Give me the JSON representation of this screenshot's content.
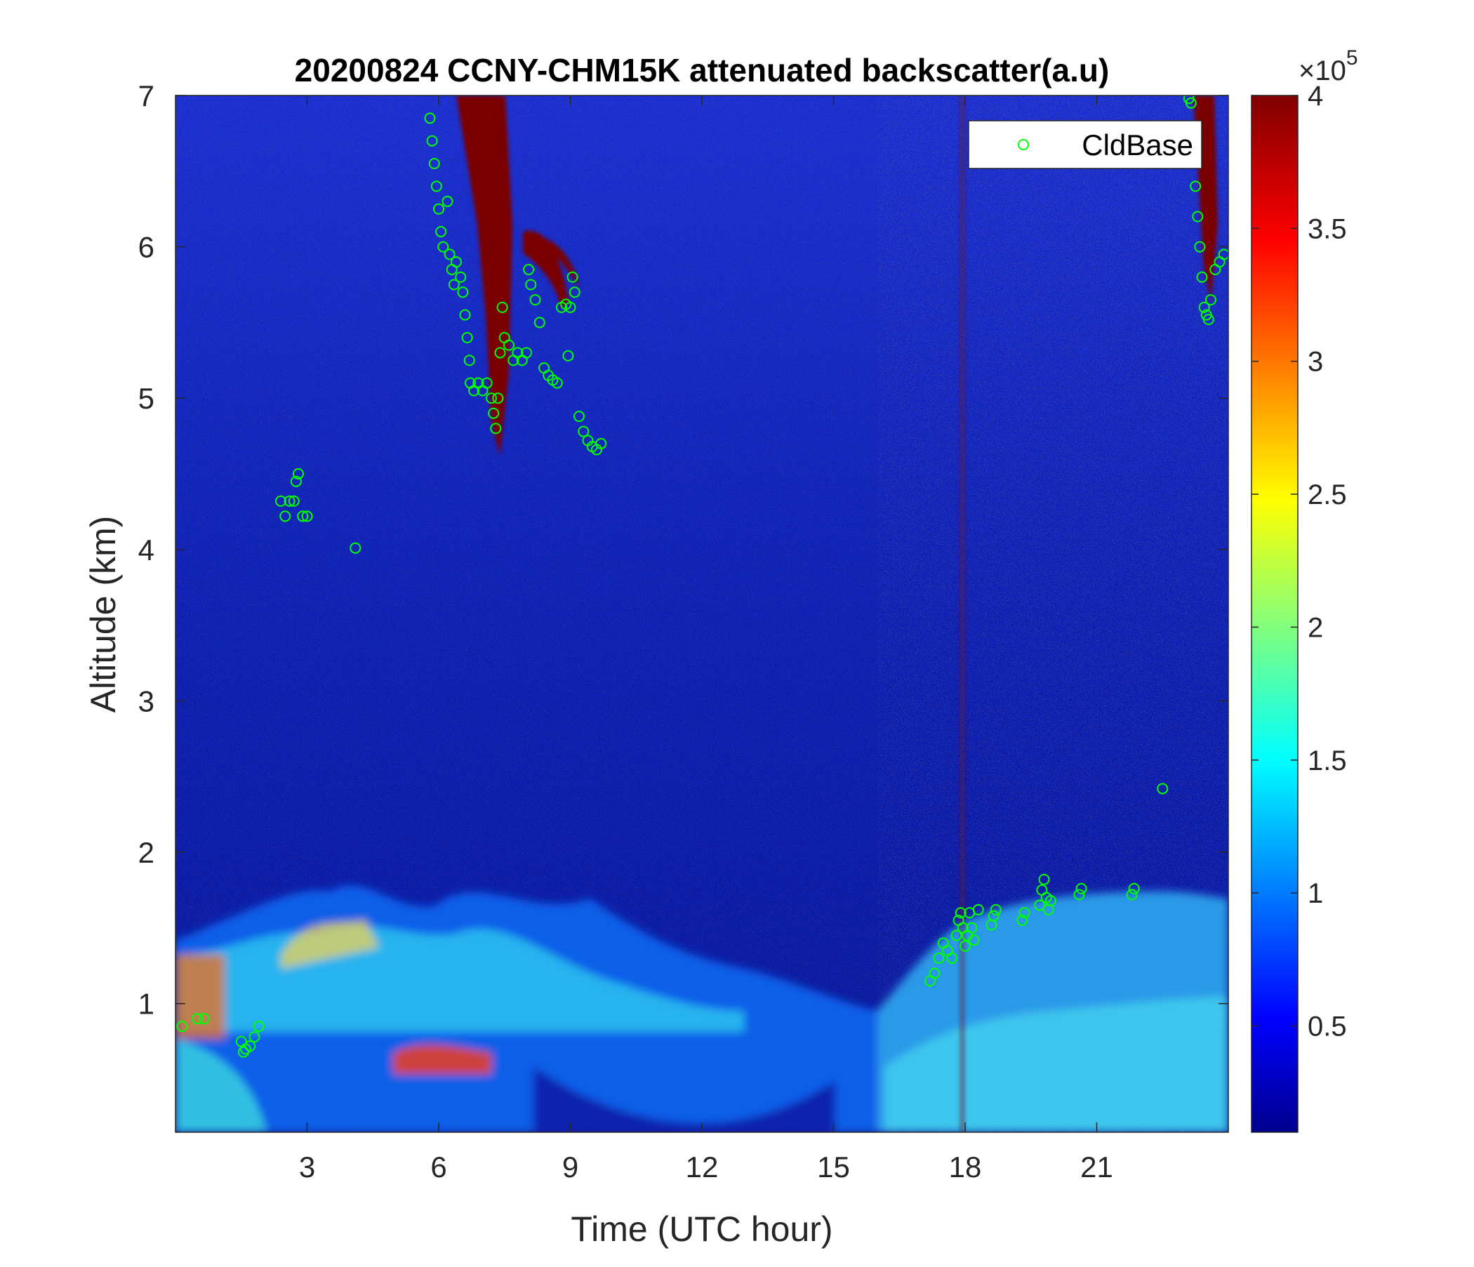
{
  "chart_data": {
    "type": "heatmap",
    "title": "20200824 CCNY-CHM15K attenuated backscatter(a.u)",
    "xlabel": "Time (UTC hour)",
    "ylabel": "Altitude (km)",
    "xlim": [
      0,
      24
    ],
    "ylim": [
      0.15,
      7
    ],
    "xticks": [
      3,
      6,
      9,
      12,
      15,
      18,
      21
    ],
    "yticks": [
      1,
      2,
      3,
      4,
      5,
      6,
      7
    ],
    "colorbar": {
      "colormap": "jet",
      "clim": [
        0.1,
        4
      ],
      "ticks": [
        0.5,
        1,
        1.5,
        2,
        2.5,
        3,
        3.5,
        4
      ],
      "multiplier_base": "×10",
      "multiplier_exp": "5"
    },
    "legend": {
      "position": "top-right",
      "entries": [
        {
          "label": "CldBase",
          "marker": "circle",
          "color": "#00ff00"
        }
      ]
    },
    "series": [
      {
        "name": "CldBase",
        "points": [
          [
            0.15,
            0.85
          ],
          [
            0.5,
            0.9
          ],
          [
            0.65,
            0.9
          ],
          [
            1.5,
            0.75
          ],
          [
            1.6,
            0.7
          ],
          [
            1.7,
            0.72
          ],
          [
            1.8,
            0.78
          ],
          [
            1.9,
            0.85
          ],
          [
            1.55,
            0.68
          ],
          [
            2.4,
            4.32
          ],
          [
            2.5,
            4.22
          ],
          [
            2.6,
            4.32
          ],
          [
            2.7,
            4.32
          ],
          [
            2.8,
            4.5
          ],
          [
            2.75,
            4.45
          ],
          [
            2.9,
            4.22
          ],
          [
            3.0,
            4.22
          ],
          [
            4.1,
            4.01
          ],
          [
            5.8,
            6.85
          ],
          [
            5.85,
            6.7
          ],
          [
            5.9,
            6.55
          ],
          [
            5.95,
            6.4
          ],
          [
            6.0,
            6.25
          ],
          [
            6.05,
            6.1
          ],
          [
            6.1,
            6.0
          ],
          [
            6.2,
            6.3
          ],
          [
            6.25,
            5.95
          ],
          [
            6.3,
            5.85
          ],
          [
            6.35,
            5.75
          ],
          [
            6.4,
            5.9
          ],
          [
            6.5,
            5.8
          ],
          [
            6.55,
            5.7
          ],
          [
            6.6,
            5.55
          ],
          [
            6.65,
            5.4
          ],
          [
            6.7,
            5.25
          ],
          [
            6.72,
            5.1
          ],
          [
            6.8,
            5.05
          ],
          [
            6.9,
            5.1
          ],
          [
            7.0,
            5.05
          ],
          [
            7.1,
            5.1
          ],
          [
            7.2,
            5.0
          ],
          [
            7.25,
            4.9
          ],
          [
            7.3,
            4.8
          ],
          [
            7.35,
            5.0
          ],
          [
            7.4,
            5.3
          ],
          [
            7.45,
            5.6
          ],
          [
            7.5,
            5.4
          ],
          [
            7.6,
            5.35
          ],
          [
            7.7,
            5.25
          ],
          [
            7.8,
            5.3
          ],
          [
            7.9,
            5.25
          ],
          [
            8.0,
            5.3
          ],
          [
            8.05,
            5.85
          ],
          [
            8.1,
            5.75
          ],
          [
            8.2,
            5.65
          ],
          [
            8.3,
            5.5
          ],
          [
            8.4,
            5.2
          ],
          [
            8.5,
            5.15
          ],
          [
            8.6,
            5.12
          ],
          [
            8.7,
            5.1
          ],
          [
            8.8,
            5.6
          ],
          [
            8.9,
            5.62
          ],
          [
            9.0,
            5.6
          ],
          [
            8.95,
            5.28
          ],
          [
            9.05,
            5.8
          ],
          [
            9.1,
            5.7
          ],
          [
            9.2,
            4.88
          ],
          [
            9.3,
            4.78
          ],
          [
            9.4,
            4.72
          ],
          [
            9.5,
            4.68
          ],
          [
            9.6,
            4.66
          ],
          [
            9.7,
            4.7
          ],
          [
            17.2,
            1.15
          ],
          [
            17.3,
            1.2
          ],
          [
            17.4,
            1.3
          ],
          [
            17.5,
            1.4
          ],
          [
            17.6,
            1.35
          ],
          [
            17.7,
            1.3
          ],
          [
            17.8,
            1.45
          ],
          [
            17.85,
            1.55
          ],
          [
            17.9,
            1.6
          ],
          [
            17.95,
            1.5
          ],
          [
            18.0,
            1.38
          ],
          [
            18.05,
            1.45
          ],
          [
            18.1,
            1.6
          ],
          [
            18.15,
            1.5
          ],
          [
            18.2,
            1.42
          ],
          [
            18.3,
            1.62
          ],
          [
            18.6,
            1.52
          ],
          [
            18.65,
            1.58
          ],
          [
            18.7,
            1.62
          ],
          [
            19.3,
            1.55
          ],
          [
            19.35,
            1.6
          ],
          [
            19.7,
            1.65
          ],
          [
            19.75,
            1.75
          ],
          [
            19.8,
            1.82
          ],
          [
            19.85,
            1.7
          ],
          [
            19.9,
            1.62
          ],
          [
            19.95,
            1.68
          ],
          [
            20.6,
            1.72
          ],
          [
            20.65,
            1.76
          ],
          [
            21.8,
            1.72
          ],
          [
            21.85,
            1.76
          ],
          [
            22.5,
            2.42
          ],
          [
            23.1,
            6.98
          ],
          [
            23.15,
            6.95
          ],
          [
            23.2,
            6.7
          ],
          [
            23.25,
            6.4
          ],
          [
            23.3,
            6.2
          ],
          [
            23.35,
            6.0
          ],
          [
            23.4,
            5.8
          ],
          [
            23.45,
            5.6
          ],
          [
            23.5,
            5.55
          ],
          [
            23.55,
            5.52
          ],
          [
            23.6,
            5.65
          ],
          [
            23.7,
            5.85
          ],
          [
            23.8,
            5.9
          ],
          [
            23.9,
            5.95
          ]
        ]
      }
    ]
  }
}
